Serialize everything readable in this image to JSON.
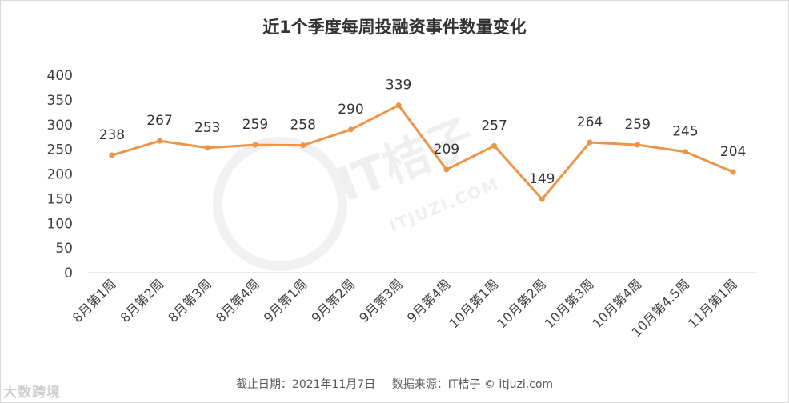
{
  "chart_data": {
    "type": "line",
    "title": "近1个季度每周投融资事件数量变化",
    "categories": [
      "8月第1周",
      "8月第2周",
      "8月第3周",
      "8月第4周",
      "9月第1周",
      "9月第2周",
      "9月第3周",
      "9月第4周",
      "10月第1周",
      "10月第2周",
      "10月第3周",
      "10月第4周",
      "10月第4.5周",
      "11月第1周"
    ],
    "series": [
      {
        "values": [
          238,
          267,
          253,
          259,
          258,
          290,
          339,
          209,
          257,
          149,
          264,
          259,
          245,
          204
        ]
      }
    ],
    "ylim": [
      0,
      400
    ],
    "yticks": [
      0,
      50,
      100,
      150,
      200,
      250,
      300,
      350,
      400
    ],
    "grid": false,
    "color": "#ee9446"
  },
  "footer": {
    "date": "截止日期：2021年11月7日",
    "source": "数据来源：IT桔子 © itjuzi.com"
  },
  "watermark": {
    "brand": "IT桔子",
    "url": "ITJUZI.COM",
    "logo": "大数跨境"
  }
}
